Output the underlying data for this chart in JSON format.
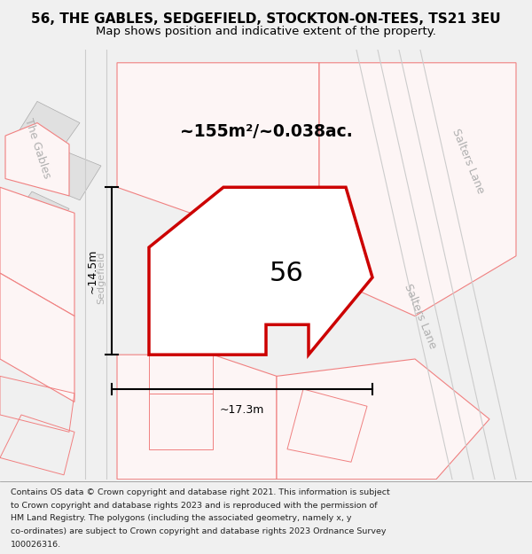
{
  "title": "56, THE GABLES, SEDGEFIELD, STOCKTON-ON-TEES, TS21 3EU",
  "subtitle": "Map shows position and indicative extent of the property.",
  "footer_lines": [
    "Contains OS data © Crown copyright and database right 2021. This information is subject",
    "to Crown copyright and database rights 2023 and is reproduced with the permission of",
    "HM Land Registry. The polygons (including the associated geometry, namely x, y",
    "co-ordinates) are subject to Crown copyright and database rights 2023 Ordnance Survey",
    "100026316."
  ],
  "area_text": "~155m²/~0.038ac.",
  "label_56": "56",
  "dim_height": "~14.5m",
  "dim_width": "~17.3m",
  "road_label_1": "Salters Lane",
  "road_label_2": "Salters Lane",
  "road_label_3": "The Gables",
  "road_label_4": "Sedgefield",
  "bg_color": "#f0f0f0",
  "map_bg": "#ffffff",
  "red_plot": "#cc0000",
  "pink_outline": "#f08080",
  "gray_outline": "#c8c8c8",
  "title_color": "#000000",
  "footer_color": "#222222",
  "figsize": [
    6.0,
    6.25
  ],
  "dpi": 100
}
